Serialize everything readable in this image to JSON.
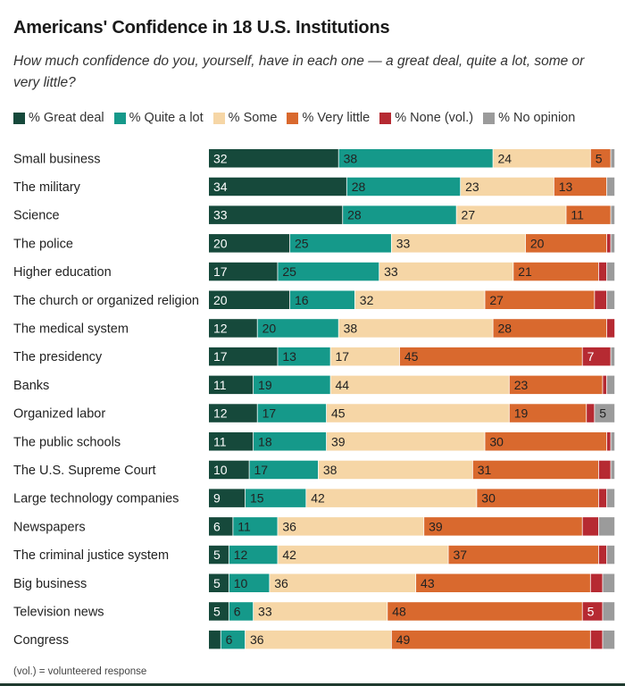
{
  "header": {
    "title": "Americans' Confidence in 18 U.S. Institutions",
    "subtitle": "How much confidence do you, yourself, have in each one — a great deal, quite a lot, some or very little?"
  },
  "footnote": "(vol.) = volunteered response",
  "chart_data": {
    "type": "bar",
    "orientation": "horizontal",
    "stacked": true,
    "categories": [
      "Small business",
      "The military",
      "Science",
      "The police",
      "Higher education",
      "The church or organized religion",
      "The medical system",
      "The presidency",
      "Banks",
      "Organized labor",
      "The public schools",
      "The U.S. Supreme Court",
      "Large technology companies",
      "Newspapers",
      "The criminal justice system",
      "Big business",
      "Television news",
      "Congress"
    ],
    "series": [
      {
        "name": "% Great deal",
        "color": "#16493b",
        "values": [
          32,
          34,
          33,
          20,
          17,
          20,
          12,
          17,
          11,
          12,
          11,
          10,
          9,
          6,
          5,
          5,
          5,
          3
        ]
      },
      {
        "name": "% Quite a lot",
        "color": "#15998a",
        "values": [
          38,
          28,
          28,
          25,
          25,
          16,
          20,
          13,
          19,
          17,
          18,
          17,
          15,
          11,
          12,
          10,
          6,
          6
        ]
      },
      {
        "name": "% Some",
        "color": "#f6d6a6",
        "values": [
          24,
          23,
          27,
          33,
          33,
          32,
          38,
          17,
          44,
          45,
          39,
          38,
          42,
          36,
          42,
          36,
          33,
          36
        ]
      },
      {
        "name": "% Very little",
        "color": "#d9692e",
        "values": [
          5,
          13,
          11,
          20,
          21,
          27,
          28,
          45,
          23,
          19,
          30,
          31,
          30,
          39,
          37,
          43,
          48,
          49
        ]
      },
      {
        "name": "% None (vol.)",
        "color": "#b62a32",
        "values": [
          0,
          0,
          0,
          1,
          2,
          3,
          2,
          7,
          1,
          2,
          1,
          3,
          2,
          4,
          2,
          3,
          5,
          3
        ]
      },
      {
        "name": "% No opinion",
        "color": "#9b9b9b",
        "values": [
          1,
          2,
          1,
          1,
          2,
          2,
          0,
          1,
          2,
          5,
          1,
          1,
          2,
          4,
          2,
          3,
          3,
          3
        ]
      }
    ],
    "labeled_values": [
      [
        32,
        38,
        24,
        5,
        null,
        null
      ],
      [
        34,
        28,
        23,
        13,
        null,
        null
      ],
      [
        33,
        28,
        27,
        11,
        null,
        null
      ],
      [
        20,
        25,
        33,
        20,
        null,
        null
      ],
      [
        17,
        25,
        33,
        21,
        null,
        null
      ],
      [
        20,
        16,
        32,
        27,
        null,
        null
      ],
      [
        12,
        20,
        38,
        28,
        null,
        null
      ],
      [
        17,
        13,
        17,
        45,
        7,
        null
      ],
      [
        11,
        19,
        44,
        23,
        null,
        null
      ],
      [
        12,
        17,
        45,
        19,
        null,
        5
      ],
      [
        11,
        18,
        39,
        30,
        null,
        null
      ],
      [
        10,
        17,
        38,
        31,
        null,
        null
      ],
      [
        9,
        15,
        42,
        30,
        null,
        null
      ],
      [
        6,
        11,
        36,
        39,
        null,
        null
      ],
      [
        5,
        12,
        42,
        37,
        null,
        null
      ],
      [
        5,
        10,
        36,
        43,
        null,
        null
      ],
      [
        5,
        6,
        33,
        48,
        5,
        null
      ],
      [
        null,
        6,
        36,
        49,
        null,
        null
      ]
    ],
    "xlim": [
      0,
      100
    ],
    "legend_position": "top",
    "grid": false
  }
}
